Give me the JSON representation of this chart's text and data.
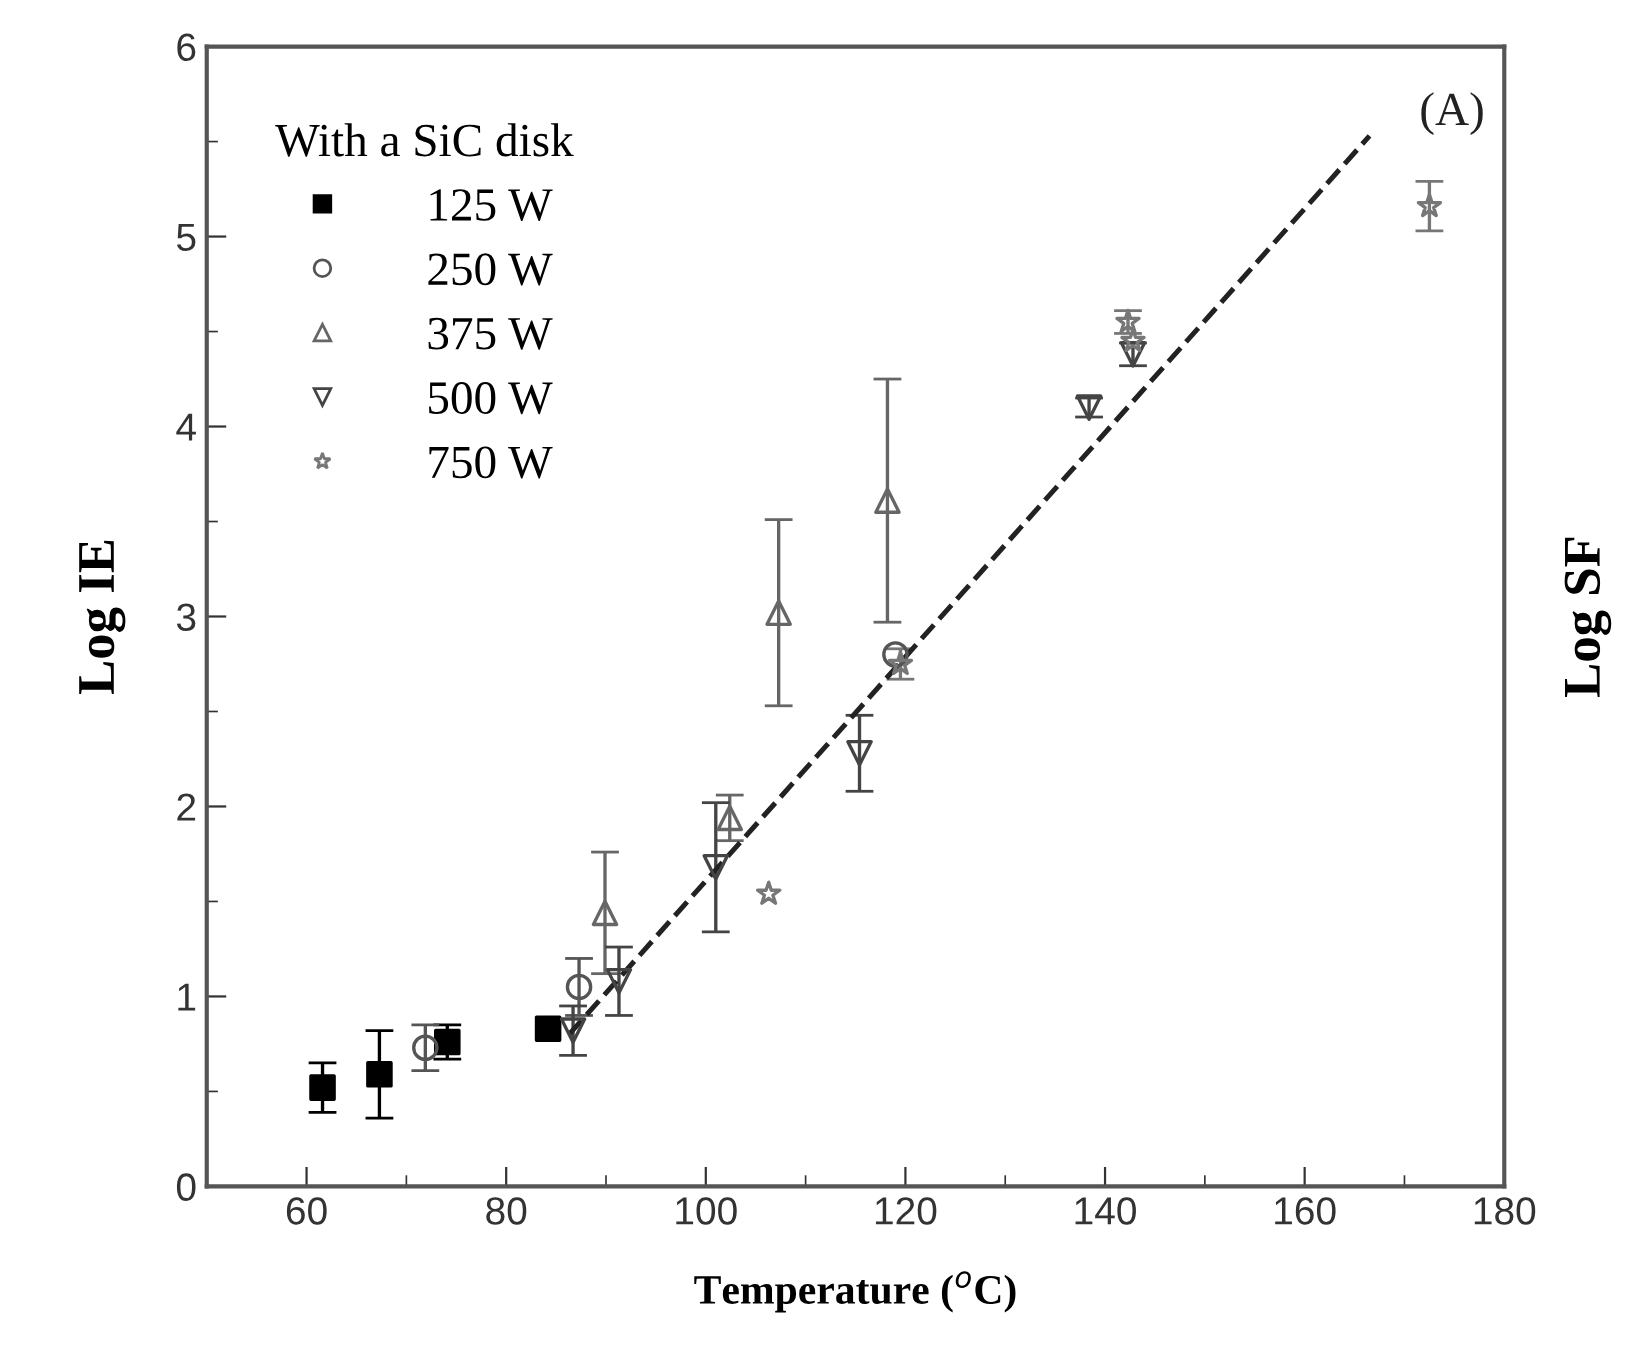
{
  "chart_data": {
    "type": "scatter",
    "xlabel": "Temperature ($^{o}$C)",
    "ylabel": "Log IE",
    "y2label": "Log SF",
    "legend_title": "With a SiC disk",
    "legend": "top left",
    "annotations": [
      "(A)"
    ],
    "xlim": [
      50,
      180
    ],
    "xticks": [
      60,
      80,
      100,
      120,
      140,
      160,
      180
    ],
    "ylim": [
      0,
      6
    ],
    "yticks": [
      0,
      1,
      2,
      3,
      4,
      5,
      6
    ],
    "grid": false,
    "series": [
      {
        "name": "125 W",
        "color": "#000000",
        "marker": "square",
        "x": [
          61.6,
          67.3,
          74.1,
          84.2
        ],
        "values": [
          0.52,
          0.59,
          0.76,
          0.83
        ],
        "errors": [
          0.13,
          0.23,
          0.09,
          null
        ]
      },
      {
        "name": "250 W",
        "color": "#555555",
        "marker": "circle",
        "x": [
          71.9,
          87.3,
          119
        ],
        "values": [
          0.73,
          1.05,
          2.8
        ],
        "errors": [
          0.12,
          0.15,
          null
        ]
      },
      {
        "name": "375 W",
        "color": "#666666",
        "marker": "triangle",
        "x": [
          89.9,
          102.4,
          107.3,
          118.2
        ],
        "values": [
          1.44,
          1.94,
          3.02,
          3.61
        ],
        "errors": [
          0.32,
          0.12,
          0.49,
          0.64
        ]
      },
      {
        "name": "500 W",
        "color": "#444444",
        "marker": "triangle_down",
        "x": [
          86.7,
          91.3,
          101,
          115.4,
          138.4,
          142.8
        ],
        "values": [
          0.82,
          1.08,
          1.68,
          2.28,
          4.1,
          4.38
        ],
        "errors": [
          0.13,
          0.18,
          0.34,
          0.2,
          0.05,
          0.06
        ]
      },
      {
        "name": "750 W",
        "color": "#777777",
        "marker": "star",
        "x": [
          106.3,
          119.5,
          142.3,
          142.8,
          172.5
        ],
        "values": [
          1.54,
          2.75,
          4.55,
          4.45,
          5.16
        ],
        "errors": [
          null,
          0.08,
          0.06,
          null,
          0.13
        ]
      },
      {
        "type": "line",
        "color": "#222222",
        "line_style": "dashed",
        "marker": "none",
        "x": [
          86.3,
          166.5
        ],
        "values": [
          0.8,
          5.53
        ]
      }
    ]
  }
}
